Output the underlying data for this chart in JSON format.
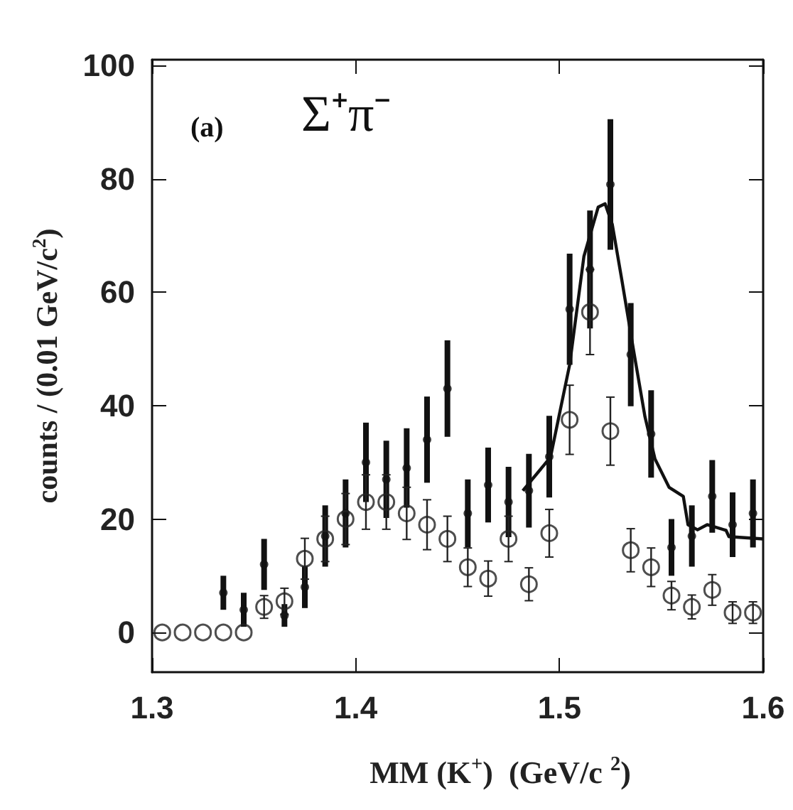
{
  "chart_data": {
    "type": "scatter",
    "xlabel": "MM (K$^{+}$)  (GeV/c $^{2}$)",
    "ylabel": "counts / (0.01 GeV/c$^{2}$)",
    "annotations": [
      "(a)",
      "Σ⁺π⁻"
    ],
    "xlim": [
      1.3,
      1.6
    ],
    "xticks": [
      1.3,
      1.4,
      1.5,
      1.6
    ],
    "ylim": [
      -7,
      101
    ],
    "yticks": [
      0,
      20,
      40,
      60,
      80,
      100
    ],
    "grid": false,
    "series": [
      {
        "marker": "circle",
        "color": "#111111",
        "x": [
          1.335,
          1.345,
          1.355,
          1.365,
          1.375,
          1.385,
          1.395,
          1.405,
          1.415,
          1.425,
          1.435,
          1.445,
          1.455,
          1.465,
          1.475,
          1.485,
          1.495,
          1.505,
          1.515,
          1.525,
          1.535,
          1.545,
          1.555,
          1.565,
          1.575,
          1.585,
          1.595
        ],
        "values": [
          7,
          4,
          12,
          3,
          8,
          17,
          21,
          30,
          27,
          29,
          34,
          43,
          21,
          26,
          23,
          25,
          31,
          57,
          64,
          79,
          49,
          35,
          15,
          17,
          24,
          19,
          21
        ],
        "errors": [
          3,
          3,
          4.5,
          2,
          3.7,
          5.4,
          6,
          7,
          6.8,
          7,
          7.6,
          8.5,
          6,
          6.6,
          6.2,
          6.5,
          7.2,
          9.8,
          10.4,
          11.5,
          9.1,
          7.7,
          5,
          5.4,
          6.4,
          5.7,
          6
        ]
      },
      {
        "marker": "circle",
        "color": "#222222",
        "x": [
          1.305,
          1.315,
          1.325,
          1.335,
          1.345,
          1.355,
          1.365,
          1.375,
          1.385,
          1.395,
          1.405,
          1.415,
          1.425,
          1.435,
          1.445,
          1.455,
          1.465,
          1.475,
          1.485,
          1.495,
          1.505,
          1.515,
          1.525,
          1.535,
          1.545,
          1.555,
          1.565,
          1.575,
          1.585,
          1.595
        ],
        "values": [
          0,
          0,
          0,
          0,
          0,
          4.5,
          5.5,
          13,
          16.5,
          20,
          23,
          23,
          21,
          19,
          16.5,
          11.5,
          9.5,
          16.5,
          8.5,
          17.5,
          37.5,
          56.5,
          35.5,
          14.5,
          11.5,
          6.5,
          4.5,
          7.5,
          3.5,
          3.5
        ],
        "errors": [
          null,
          null,
          null,
          null,
          null,
          2,
          2.3,
          3.6,
          4,
          4.5,
          4.8,
          4.8,
          4.6,
          4.4,
          4,
          3.4,
          3.1,
          4,
          2.9,
          4.2,
          6.1,
          7.5,
          6,
          3.8,
          3.4,
          2.5,
          2.1,
          2.7,
          1.9,
          1.9
        ]
      },
      {
        "type": "line",
        "marker": "none",
        "line_style": "solid",
        "color": "#111111",
        "x": [
          1.482,
          1.4956,
          1.505,
          1.512,
          1.519,
          1.5224,
          1.5259,
          1.5306,
          1.5364,
          1.542,
          1.5469,
          1.5538,
          1.5608,
          1.5631,
          1.5678,
          1.5725,
          1.5818,
          1.5832,
          1.6
        ],
        "values": [
          25,
          30.9,
          47.2,
          66.3,
          75,
          75.6,
          72,
          62.2,
          49.7,
          38,
          30.6,
          25.6,
          24,
          19,
          18.1,
          19,
          18,
          16.9,
          16.5
        ]
      }
    ]
  }
}
